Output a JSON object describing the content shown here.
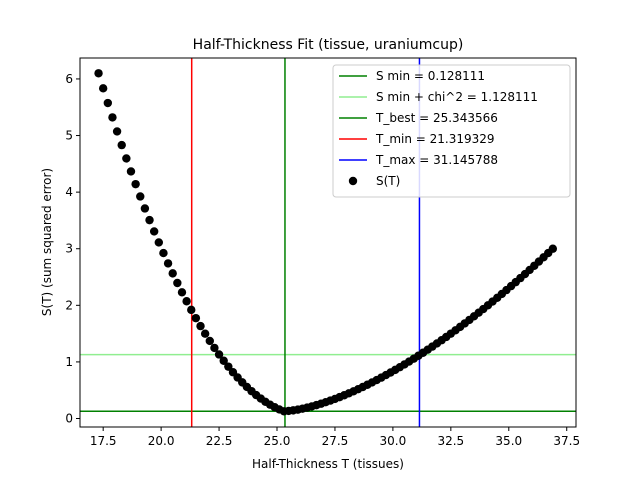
{
  "chart_data": {
    "type": "scatter",
    "title": "Half-Thickness Fit (tissue, uraniumcup)",
    "xlabel": "Half-Thickness T (tissues)",
    "ylabel": "S(T) (sum squared error)",
    "xlim": [
      16.5,
      37.9
    ],
    "ylim": [
      -0.15,
      6.37
    ],
    "xticks": [
      "17.5",
      "20.0",
      "22.5",
      "25.0",
      "27.5",
      "30.0",
      "32.5",
      "35.0",
      "37.5"
    ],
    "xtick_values": [
      17.5,
      20.0,
      22.5,
      25.0,
      27.5,
      30.0,
      32.5,
      35.0,
      37.5
    ],
    "yticks": [
      "0",
      "1",
      "2",
      "3",
      "4",
      "5",
      "6"
    ],
    "ytick_values": [
      0,
      1,
      2,
      3,
      4,
      5,
      6
    ],
    "grid": false,
    "legend_position": "top-right",
    "hlines": [
      {
        "name": "S min = 0.128111",
        "y": 0.128111,
        "color": "#008000"
      },
      {
        "name": "S min + chi^2 = 1.128111",
        "y": 1.128111,
        "color": "#90ee90"
      }
    ],
    "vlines": [
      {
        "name": "T_best = 25.343566",
        "x": 25.343566,
        "color": "#008000"
      },
      {
        "name": "T_min = 21.319329",
        "x": 21.319329,
        "color": "#ff0000"
      },
      {
        "name": "T_max = 31.145788",
        "x": 31.145788,
        "color": "#0000ff"
      }
    ],
    "legend": [
      {
        "label": "S min = 0.128111",
        "kind": "line",
        "color": "#008000"
      },
      {
        "label": "S min + chi^2 = 1.128111",
        "kind": "line",
        "color": "#90ee90"
      },
      {
        "label": "T_best = 25.343566",
        "kind": "line",
        "color": "#008000"
      },
      {
        "label": "T_min = 21.319329",
        "kind": "line",
        "color": "#ff0000"
      },
      {
        "label": "T_max = 31.145788",
        "kind": "line",
        "color": "#0000ff"
      },
      {
        "label": "S(T)",
        "kind": "marker",
        "color": "#000000"
      }
    ],
    "series": [
      {
        "name": "S(T)",
        "color": "#000000",
        "x_range": [
          17.3,
          36.9
        ],
        "step": 0.2,
        "model": {
          "left": {
            "x0": 17.3,
            "x1": 25.3,
            "y0": 6.1,
            "y1": 0.128,
            "a": 0.2
          },
          "right": {
            "x0": 25.3,
            "x1": 36.9,
            "y0": 0.128,
            "y1": 3.0,
            "p": 1.55
          }
        }
      }
    ]
  }
}
